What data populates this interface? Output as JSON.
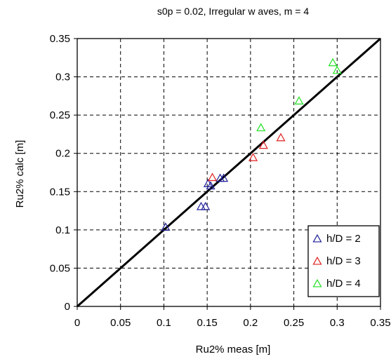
{
  "chart_data": {
    "type": "scatter",
    "title": "s0p = 0.02, Irregular w aves, m = 4",
    "xlabel": "Ru2% meas [m]",
    "ylabel": "Ru2% calc [m]",
    "xlim": [
      0,
      0.35
    ],
    "ylim": [
      0,
      0.35
    ],
    "xticks": [
      0,
      0.05,
      0.1,
      0.15,
      0.2,
      0.25,
      0.3,
      0.35
    ],
    "xtick_labels": [
      "0",
      "0.05",
      "0.1",
      "0.15",
      "0.2",
      "0.25",
      "0.3",
      "0.35"
    ],
    "yticks": [
      0,
      0.05,
      0.1,
      0.15,
      0.2,
      0.25,
      0.3,
      0.35
    ],
    "ytick_labels": [
      "0",
      "0.05",
      "0.1",
      "0.15",
      "0.2",
      "0.25",
      "0.3",
      "0.35"
    ],
    "grid": true,
    "legend_position": "bottom-right",
    "marker": "triangle-open",
    "series": [
      {
        "name": "h/D = 2",
        "color": "#1f1f99",
        "points": [
          {
            "x": 0.102,
            "y": 0.104
          },
          {
            "x": 0.143,
            "y": 0.131
          },
          {
            "x": 0.148,
            "y": 0.131
          },
          {
            "x": 0.151,
            "y": 0.161
          },
          {
            "x": 0.154,
            "y": 0.158
          },
          {
            "x": 0.165,
            "y": 0.168
          },
          {
            "x": 0.169,
            "y": 0.168
          }
        ]
      },
      {
        "name": "h/D = 3",
        "color": "#e02020",
        "points": [
          {
            "x": 0.156,
            "y": 0.169
          },
          {
            "x": 0.203,
            "y": 0.195
          },
          {
            "x": 0.215,
            "y": 0.211
          },
          {
            "x": 0.235,
            "y": 0.221
          }
        ]
      },
      {
        "name": "h/D = 4",
        "color": "#22e022",
        "points": [
          {
            "x": 0.212,
            "y": 0.234
          },
          {
            "x": 0.256,
            "y": 0.269
          },
          {
            "x": 0.295,
            "y": 0.319
          },
          {
            "x": 0.3,
            "y": 0.309
          }
        ]
      }
    ],
    "reference_line": {
      "x": [
        0,
        0.35
      ],
      "y": [
        0,
        0.35
      ],
      "color": "#000000"
    }
  }
}
